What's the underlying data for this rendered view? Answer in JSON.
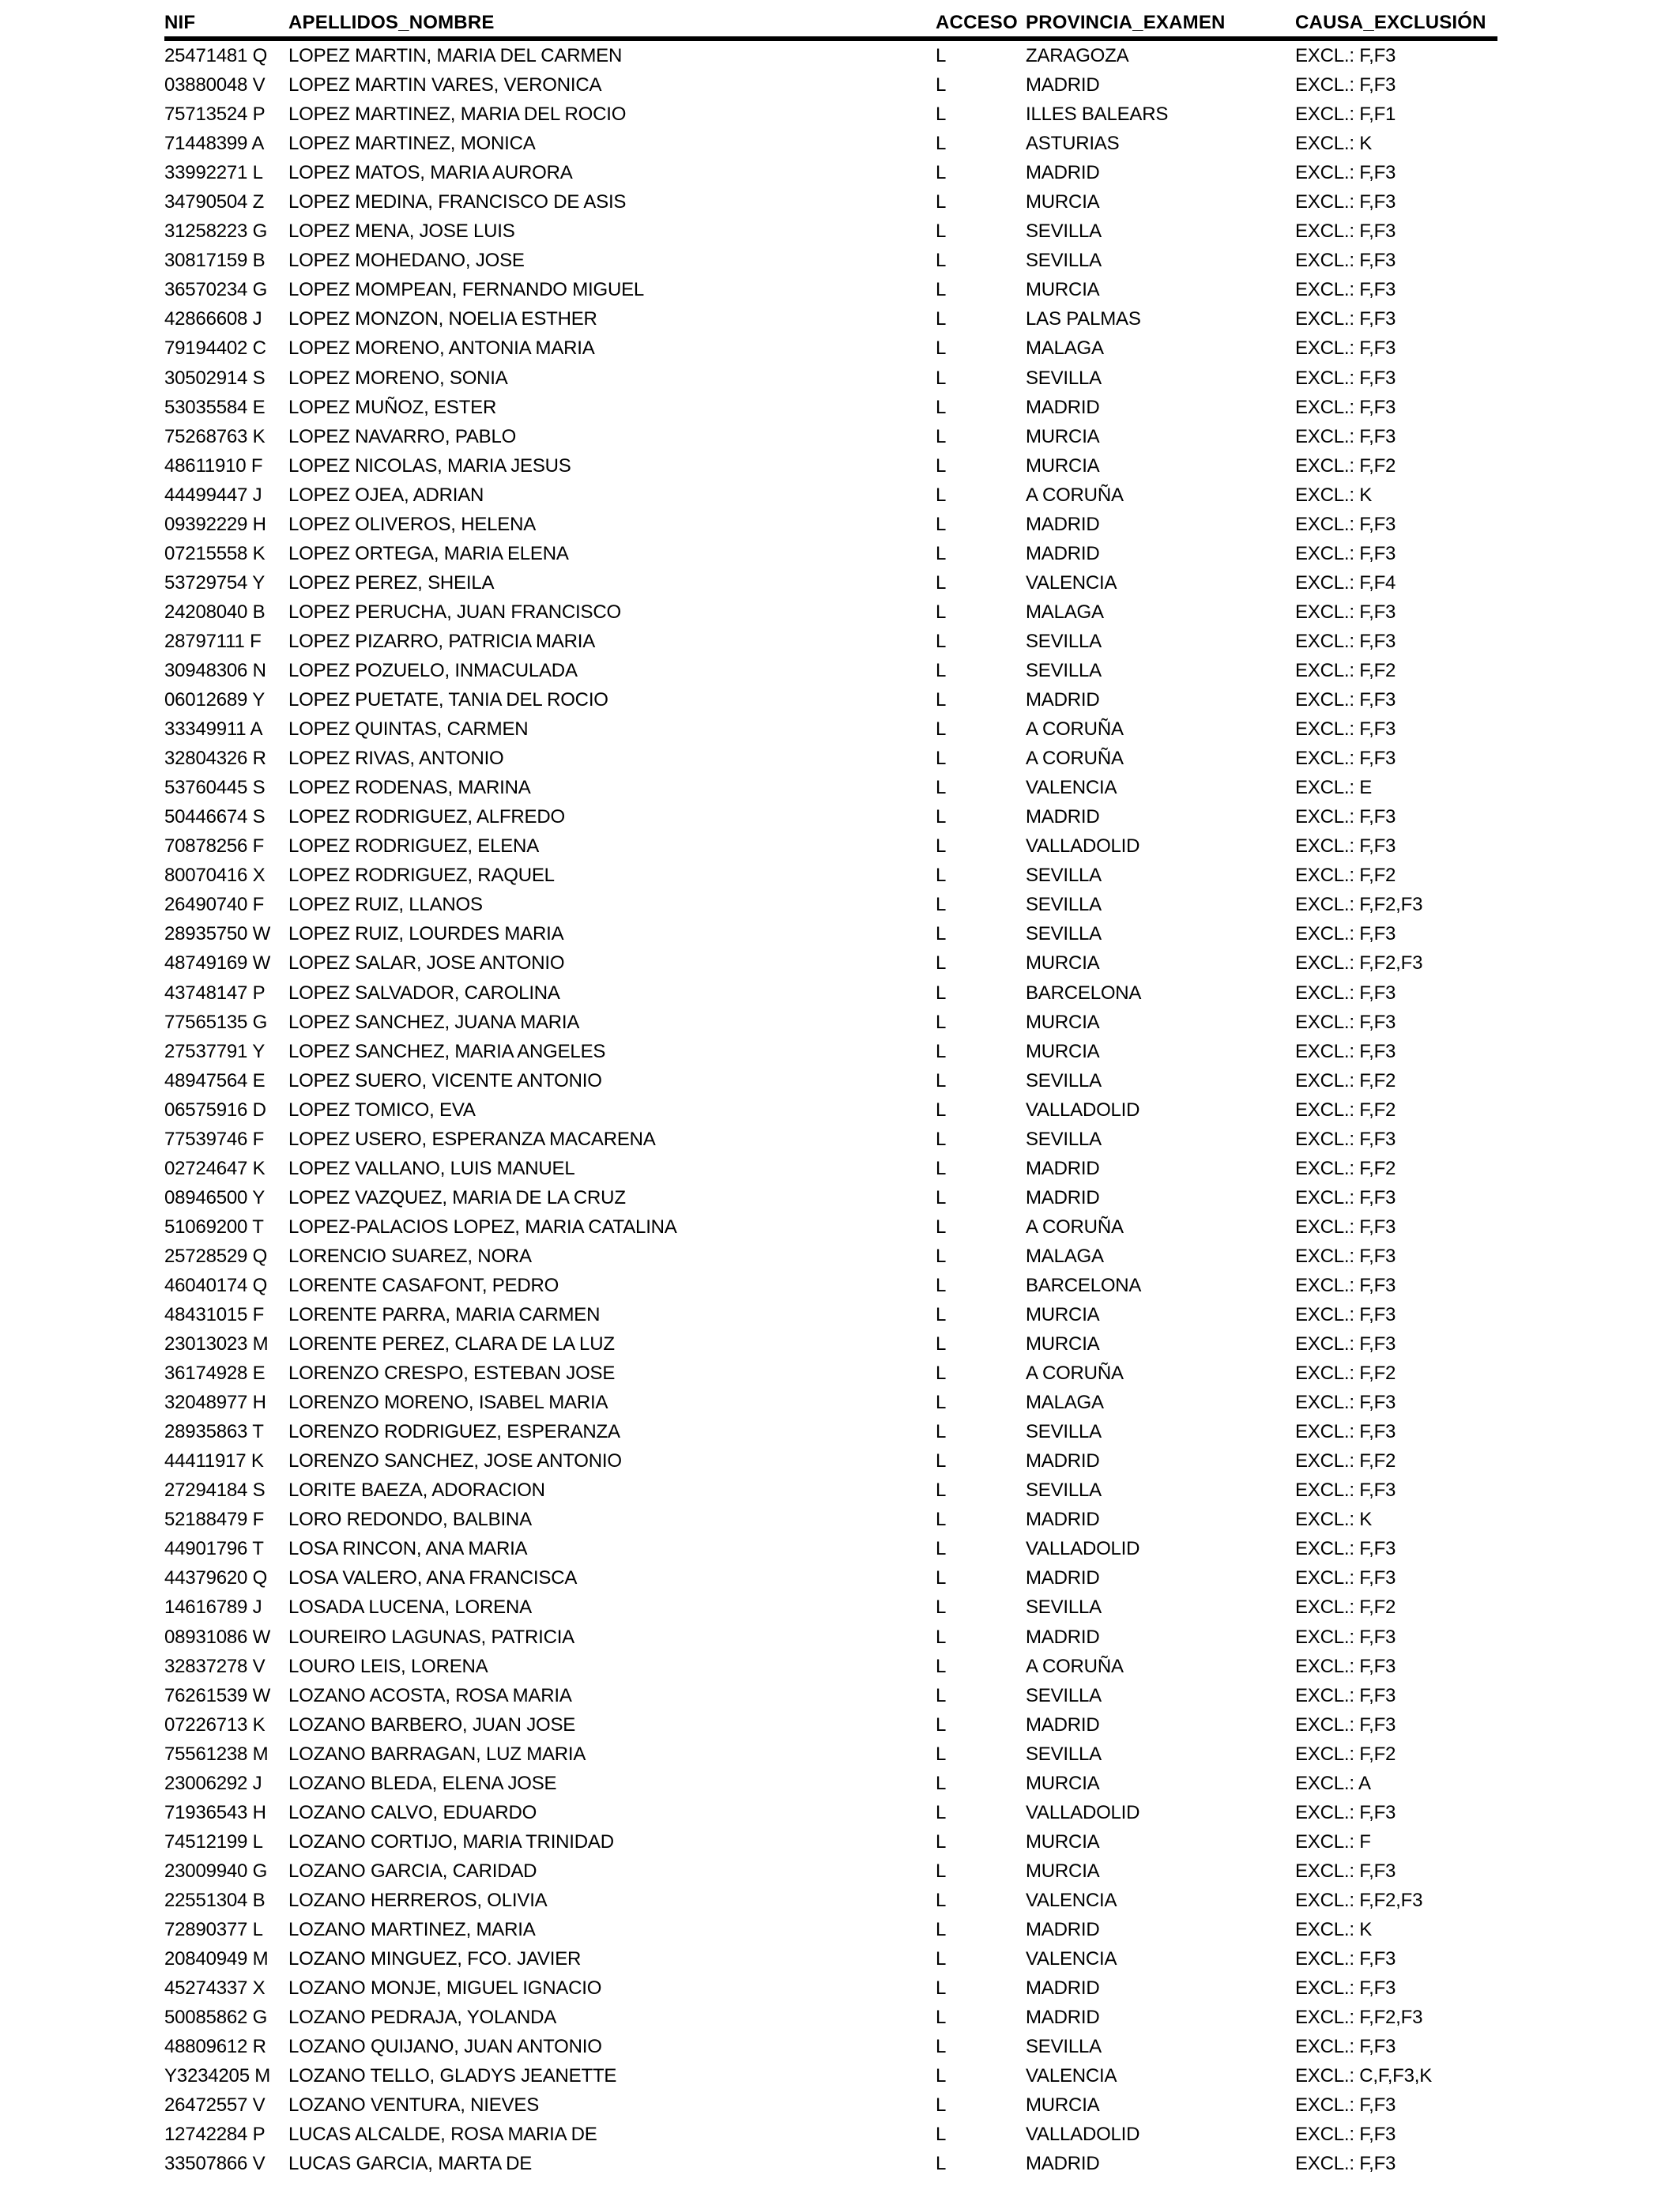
{
  "table": {
    "columns": [
      {
        "key": "nif",
        "label": "NIF"
      },
      {
        "key": "name",
        "label": "APELLIDOS_NOMBRE"
      },
      {
        "key": "acceso",
        "label": "ACCESO"
      },
      {
        "key": "provincia",
        "label": "PROVINCIA_EXAMEN"
      },
      {
        "key": "causa",
        "label": "CAUSA_EXCLUSIÓN"
      }
    ],
    "rows": [
      [
        "25471481 Q",
        "LOPEZ MARTIN, MARIA DEL CARMEN",
        "L",
        "ZARAGOZA",
        "EXCL.: F,F3"
      ],
      [
        "03880048 V",
        "LOPEZ MARTIN VARES, VERONICA",
        "L",
        "MADRID",
        "EXCL.: F,F3"
      ],
      [
        "75713524 P",
        "LOPEZ MARTINEZ, MARIA DEL ROCIO",
        "L",
        "ILLES BALEARS",
        "EXCL.: F,F1"
      ],
      [
        "71448399 A",
        "LOPEZ MARTINEZ, MONICA",
        "L",
        "ASTURIAS",
        "EXCL.: K"
      ],
      [
        "33992271 L",
        "LOPEZ MATOS, MARIA AURORA",
        "L",
        "MADRID",
        "EXCL.: F,F3"
      ],
      [
        "34790504 Z",
        "LOPEZ MEDINA, FRANCISCO DE ASIS",
        "L",
        "MURCIA",
        "EXCL.: F,F3"
      ],
      [
        "31258223 G",
        "LOPEZ MENA, JOSE LUIS",
        "L",
        "SEVILLA",
        "EXCL.: F,F3"
      ],
      [
        "30817159 B",
        "LOPEZ MOHEDANO, JOSE",
        "L",
        "SEVILLA",
        "EXCL.: F,F3"
      ],
      [
        "36570234 G",
        "LOPEZ MOMPEAN, FERNANDO MIGUEL",
        "L",
        "MURCIA",
        "EXCL.: F,F3"
      ],
      [
        "42866608 J",
        "LOPEZ MONZON, NOELIA ESTHER",
        "L",
        "LAS PALMAS",
        "EXCL.: F,F3"
      ],
      [
        "79194402 C",
        "LOPEZ MORENO, ANTONIA MARIA",
        "L",
        "MALAGA",
        "EXCL.: F,F3"
      ],
      [
        "30502914 S",
        "LOPEZ MORENO, SONIA",
        "L",
        "SEVILLA",
        "EXCL.: F,F3"
      ],
      [
        "53035584 E",
        "LOPEZ MUÑOZ, ESTER",
        "L",
        "MADRID",
        "EXCL.: F,F3"
      ],
      [
        "75268763 K",
        "LOPEZ NAVARRO, PABLO",
        "L",
        "MURCIA",
        "EXCL.: F,F3"
      ],
      [
        "48611910 F",
        "LOPEZ NICOLAS, MARIA JESUS",
        "L",
        "MURCIA",
        "EXCL.: F,F2"
      ],
      [
        "44499447 J",
        "LOPEZ OJEA, ADRIAN",
        "L",
        "A CORUÑA",
        "EXCL.: K"
      ],
      [
        "09392229 H",
        "LOPEZ OLIVEROS, HELENA",
        "L",
        "MADRID",
        "EXCL.: F,F3"
      ],
      [
        "07215558 K",
        "LOPEZ ORTEGA, MARIA ELENA",
        "L",
        "MADRID",
        "EXCL.: F,F3"
      ],
      [
        "53729754 Y",
        "LOPEZ PEREZ, SHEILA",
        "L",
        "VALENCIA",
        "EXCL.: F,F4"
      ],
      [
        "24208040 B",
        "LOPEZ PERUCHA, JUAN FRANCISCO",
        "L",
        "MALAGA",
        "EXCL.: F,F3"
      ],
      [
        "28797111 F",
        "LOPEZ PIZARRO, PATRICIA MARIA",
        "L",
        "SEVILLA",
        "EXCL.: F,F3"
      ],
      [
        "30948306 N",
        "LOPEZ POZUELO, INMACULADA",
        "L",
        "SEVILLA",
        "EXCL.: F,F2"
      ],
      [
        "06012689 Y",
        "LOPEZ PUETATE, TANIA DEL ROCIO",
        "L",
        "MADRID",
        "EXCL.: F,F3"
      ],
      [
        "33349911 A",
        "LOPEZ QUINTAS, CARMEN",
        "L",
        "A CORUÑA",
        "EXCL.: F,F3"
      ],
      [
        "32804326 R",
        "LOPEZ RIVAS, ANTONIO",
        "L",
        "A CORUÑA",
        "EXCL.: F,F3"
      ],
      [
        "53760445 S",
        "LOPEZ RODENAS, MARINA",
        "L",
        "VALENCIA",
        "EXCL.: E"
      ],
      [
        "50446674 S",
        "LOPEZ RODRIGUEZ, ALFREDO",
        "L",
        "MADRID",
        "EXCL.: F,F3"
      ],
      [
        "70878256 F",
        "LOPEZ RODRIGUEZ, ELENA",
        "L",
        "VALLADOLID",
        "EXCL.: F,F3"
      ],
      [
        "80070416 X",
        "LOPEZ RODRIGUEZ, RAQUEL",
        "L",
        "SEVILLA",
        "EXCL.: F,F2"
      ],
      [
        "26490740 F",
        "LOPEZ RUIZ, LLANOS",
        "L",
        "SEVILLA",
        "EXCL.: F,F2,F3"
      ],
      [
        "28935750 W",
        "LOPEZ RUIZ, LOURDES MARIA",
        "L",
        "SEVILLA",
        "EXCL.: F,F3"
      ],
      [
        "48749169 W",
        "LOPEZ SALAR, JOSE ANTONIO",
        "L",
        "MURCIA",
        "EXCL.: F,F2,F3"
      ],
      [
        "43748147 P",
        "LOPEZ SALVADOR, CAROLINA",
        "L",
        "BARCELONA",
        "EXCL.: F,F3"
      ],
      [
        "77565135 G",
        "LOPEZ SANCHEZ, JUANA MARIA",
        "L",
        "MURCIA",
        "EXCL.: F,F3"
      ],
      [
        "27537791 Y",
        "LOPEZ SANCHEZ, MARIA ANGELES",
        "L",
        "MURCIA",
        "EXCL.: F,F3"
      ],
      [
        "48947564 E",
        "LOPEZ SUERO, VICENTE ANTONIO",
        "L",
        "SEVILLA",
        "EXCL.: F,F2"
      ],
      [
        "06575916 D",
        "LOPEZ TOMICO, EVA",
        "L",
        "VALLADOLID",
        "EXCL.: F,F2"
      ],
      [
        "77539746 F",
        "LOPEZ USERO, ESPERANZA MACARENA",
        "L",
        "SEVILLA",
        "EXCL.: F,F3"
      ],
      [
        "02724647 K",
        "LOPEZ VALLANO, LUIS MANUEL",
        "L",
        "MADRID",
        "EXCL.: F,F2"
      ],
      [
        "08946500 Y",
        "LOPEZ VAZQUEZ, MARIA DE LA CRUZ",
        "L",
        "MADRID",
        "EXCL.: F,F3"
      ],
      [
        "51069200 T",
        "LOPEZ-PALACIOS LOPEZ, MARIA CATALINA",
        "L",
        "A CORUÑA",
        "EXCL.: F,F3"
      ],
      [
        "25728529 Q",
        "LORENCIO SUAREZ, NORA",
        "L",
        "MALAGA",
        "EXCL.: F,F3"
      ],
      [
        "46040174 Q",
        "LORENTE CASAFONT, PEDRO",
        "L",
        "BARCELONA",
        "EXCL.: F,F3"
      ],
      [
        "48431015 F",
        "LORENTE PARRA, MARIA CARMEN",
        "L",
        "MURCIA",
        "EXCL.: F,F3"
      ],
      [
        "23013023 M",
        "LORENTE PEREZ, CLARA DE LA LUZ",
        "L",
        "MURCIA",
        "EXCL.: F,F3"
      ],
      [
        "36174928 E",
        "LORENZO CRESPO, ESTEBAN JOSE",
        "L",
        "A CORUÑA",
        "EXCL.: F,F2"
      ],
      [
        "32048977 H",
        "LORENZO MORENO, ISABEL MARIA",
        "L",
        "MALAGA",
        "EXCL.: F,F3"
      ],
      [
        "28935863 T",
        "LORENZO RODRIGUEZ, ESPERANZA",
        "L",
        "SEVILLA",
        "EXCL.: F,F3"
      ],
      [
        "44411917 K",
        "LORENZO SANCHEZ, JOSE ANTONIO",
        "L",
        "MADRID",
        "EXCL.: F,F2"
      ],
      [
        "27294184 S",
        "LORITE BAEZA, ADORACION",
        "L",
        "SEVILLA",
        "EXCL.: F,F3"
      ],
      [
        "52188479 F",
        "LORO REDONDO, BALBINA",
        "L",
        "MADRID",
        "EXCL.: K"
      ],
      [
        "44901796 T",
        "LOSA RINCON, ANA MARIA",
        "L",
        "VALLADOLID",
        "EXCL.: F,F3"
      ],
      [
        "44379620 Q",
        "LOSA VALERO, ANA FRANCISCA",
        "L",
        "MADRID",
        "EXCL.: F,F3"
      ],
      [
        "14616789 J",
        "LOSADA LUCENA, LORENA",
        "L",
        "SEVILLA",
        "EXCL.: F,F2"
      ],
      [
        "08931086 W",
        "LOUREIRO LAGUNAS, PATRICIA",
        "L",
        "MADRID",
        "EXCL.: F,F3"
      ],
      [
        "32837278 V",
        "LOURO LEIS, LORENA",
        "L",
        "A CORUÑA",
        "EXCL.: F,F3"
      ],
      [
        "76261539 W",
        "LOZANO ACOSTA, ROSA MARIA",
        "L",
        "SEVILLA",
        "EXCL.: F,F3"
      ],
      [
        "07226713 K",
        "LOZANO BARBERO, JUAN JOSE",
        "L",
        "MADRID",
        "EXCL.: F,F3"
      ],
      [
        "75561238 M",
        "LOZANO BARRAGAN, LUZ MARIA",
        "L",
        "SEVILLA",
        "EXCL.: F,F2"
      ],
      [
        "23006292 J",
        "LOZANO BLEDA, ELENA JOSE",
        "L",
        "MURCIA",
        "EXCL.: A"
      ],
      [
        "71936543 H",
        "LOZANO CALVO, EDUARDO",
        "L",
        "VALLADOLID",
        "EXCL.: F,F3"
      ],
      [
        "74512199 L",
        "LOZANO CORTIJO, MARIA TRINIDAD",
        "L",
        "MURCIA",
        "EXCL.: F"
      ],
      [
        "23009940 G",
        "LOZANO GARCIA, CARIDAD",
        "L",
        "MURCIA",
        "EXCL.: F,F3"
      ],
      [
        "22551304 B",
        "LOZANO HERREROS, OLIVIA",
        "L",
        "VALENCIA",
        "EXCL.: F,F2,F3"
      ],
      [
        "72890377 L",
        "LOZANO MARTINEZ, MARIA",
        "L",
        "MADRID",
        "EXCL.: K"
      ],
      [
        "20840949 M",
        "LOZANO MINGUEZ, FCO. JAVIER",
        "L",
        "VALENCIA",
        "EXCL.: F,F3"
      ],
      [
        "45274337 X",
        "LOZANO MONJE, MIGUEL IGNACIO",
        "L",
        "MADRID",
        "EXCL.: F,F3"
      ],
      [
        "50085862 G",
        "LOZANO PEDRAJA, YOLANDA",
        "L",
        "MADRID",
        "EXCL.: F,F2,F3"
      ],
      [
        "48809612 R",
        "LOZANO QUIJANO, JUAN ANTONIO",
        "L",
        "SEVILLA",
        "EXCL.: F,F3"
      ],
      [
        "Y3234205 M",
        "LOZANO TELLO, GLADYS JEANETTE",
        "L",
        "VALENCIA",
        "EXCL.: C,F,F3,K"
      ],
      [
        "26472557 V",
        "LOZANO VENTURA, NIEVES",
        "L",
        "MURCIA",
        "EXCL.: F,F3"
      ],
      [
        "12742284 P",
        "LUCAS ALCALDE, ROSA MARIA DE",
        "L",
        "VALLADOLID",
        "EXCL.: F,F3"
      ],
      [
        "33507866 V",
        "LUCAS GARCIA, MARTA DE",
        "L",
        "MADRID",
        "EXCL.: F,F3"
      ]
    ]
  },
  "colors": {
    "background": "#ffffff",
    "text": "#000000",
    "header_rule": "#000000"
  }
}
